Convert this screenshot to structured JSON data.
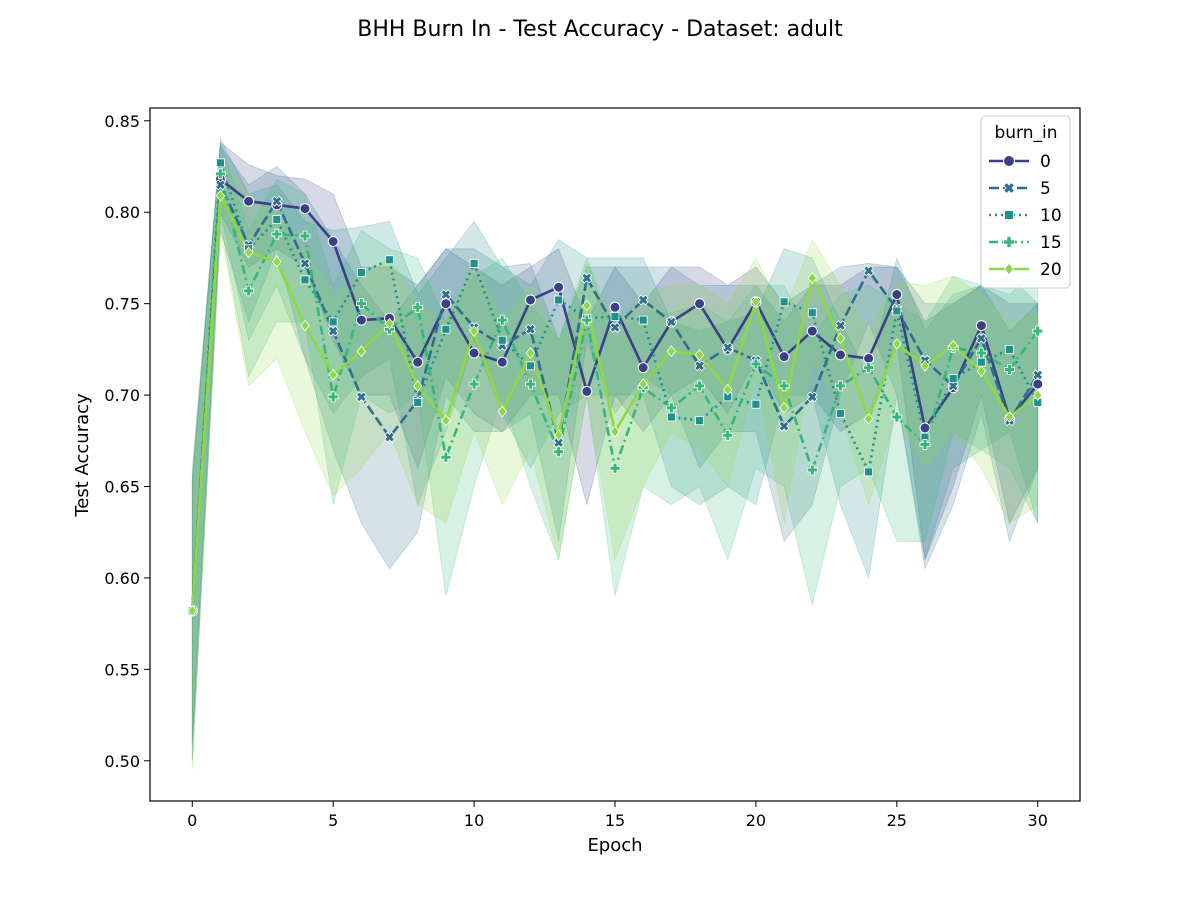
{
  "chart_data": {
    "type": "line",
    "title": "BHH Burn In - Test Accuracy - Dataset: adult",
    "xlabel": "Epoch",
    "ylabel": "Test Accuracy",
    "xlim": [
      -1.5,
      31.5
    ],
    "ylim": [
      0.478,
      0.857
    ],
    "xticks": [
      0,
      5,
      10,
      15,
      20,
      25,
      30
    ],
    "xtick_labels": [
      "0",
      "5",
      "10",
      "15",
      "20",
      "25",
      "30"
    ],
    "yticks": [
      0.5,
      0.55,
      0.6,
      0.65,
      0.7,
      0.75,
      0.8,
      0.85
    ],
    "ytick_labels": [
      "0.50",
      "0.55",
      "0.60",
      "0.65",
      "0.70",
      "0.75",
      "0.80",
      "0.85"
    ],
    "grid": false,
    "legend": {
      "title": "burn_in",
      "placement": "upper right"
    },
    "x": [
      0,
      1,
      2,
      3,
      4,
      5,
      6,
      7,
      8,
      9,
      10,
      11,
      12,
      13,
      14,
      15,
      16,
      17,
      18,
      19,
      20,
      21,
      22,
      23,
      24,
      25,
      26,
      27,
      28,
      29,
      30
    ],
    "series": [
      {
        "name": "0",
        "color": "#3b3f86",
        "marker": "circle",
        "dash": "solid",
        "values": [
          0.582,
          0.818,
          0.806,
          0.804,
          0.802,
          0.784,
          0.741,
          0.742,
          0.718,
          0.75,
          0.723,
          0.718,
          0.752,
          0.759,
          0.702,
          0.748,
          0.715,
          0.74,
          0.75,
          0.725,
          0.751,
          0.721,
          0.735,
          0.722,
          0.72,
          0.755,
          0.682,
          0.704,
          0.738,
          0.687,
          0.706
        ],
        "lower": [
          0.51,
          0.8,
          0.77,
          0.78,
          0.77,
          0.73,
          0.7,
          0.7,
          0.66,
          0.71,
          0.69,
          0.68,
          0.7,
          0.7,
          0.64,
          0.7,
          0.68,
          0.7,
          0.71,
          0.69,
          0.72,
          0.69,
          0.7,
          0.68,
          0.69,
          0.73,
          0.61,
          0.65,
          0.7,
          0.63,
          0.66
        ],
        "upper": [
          0.65,
          0.838,
          0.826,
          0.82,
          0.818,
          0.81,
          0.77,
          0.77,
          0.76,
          0.78,
          0.77,
          0.76,
          0.77,
          0.78,
          0.74,
          0.77,
          0.75,
          0.77,
          0.77,
          0.76,
          0.77,
          0.75,
          0.76,
          0.76,
          0.77,
          0.77,
          0.74,
          0.75,
          0.76,
          0.75,
          0.75
        ]
      },
      {
        "name": "5",
        "color": "#2e6e8e",
        "marker": "x",
        "dash": "10,4",
        "values": [
          0.582,
          0.815,
          0.782,
          0.806,
          0.772,
          0.735,
          0.699,
          0.677,
          0.697,
          0.755,
          0.737,
          0.727,
          0.736,
          0.674,
          0.764,
          0.737,
          0.752,
          0.74,
          0.716,
          0.726,
          0.719,
          0.683,
          0.699,
          0.738,
          0.768,
          0.747,
          0.719,
          0.705,
          0.731,
          0.686,
          0.711
        ],
        "lower": [
          0.5,
          0.79,
          0.74,
          0.78,
          0.72,
          0.67,
          0.63,
          0.605,
          0.625,
          0.7,
          0.68,
          0.68,
          0.69,
          0.62,
          0.73,
          0.69,
          0.71,
          0.7,
          0.66,
          0.68,
          0.68,
          0.62,
          0.64,
          0.7,
          0.74,
          0.7,
          0.605,
          0.64,
          0.69,
          0.62,
          0.66
        ],
        "upper": [
          0.655,
          0.836,
          0.815,
          0.825,
          0.81,
          0.785,
          0.76,
          0.74,
          0.76,
          0.78,
          0.78,
          0.77,
          0.772,
          0.73,
          0.77,
          0.77,
          0.77,
          0.77,
          0.76,
          0.76,
          0.76,
          0.74,
          0.76,
          0.77,
          0.772,
          0.77,
          0.75,
          0.75,
          0.76,
          0.735,
          0.75
        ]
      },
      {
        "name": "10",
        "color": "#21908d",
        "marker": "square",
        "dash": "2,4",
        "values": [
          0.582,
          0.827,
          0.78,
          0.796,
          0.763,
          0.74,
          0.767,
          0.774,
          0.696,
          0.736,
          0.772,
          0.73,
          0.716,
          0.752,
          0.742,
          0.743,
          0.741,
          0.688,
          0.686,
          0.699,
          0.695,
          0.751,
          0.745,
          0.69,
          0.658,
          0.746,
          0.677,
          0.709,
          0.718,
          0.725,
          0.696
        ],
        "lower": [
          0.51,
          0.8,
          0.73,
          0.76,
          0.72,
          0.69,
          0.71,
          0.72,
          0.64,
          0.68,
          0.73,
          0.69,
          0.66,
          0.69,
          0.7,
          0.7,
          0.7,
          0.65,
          0.64,
          0.65,
          0.64,
          0.7,
          0.7,
          0.64,
          0.6,
          0.7,
          0.61,
          0.66,
          0.67,
          0.68,
          0.63
        ],
        "upper": [
          0.655,
          0.84,
          0.81,
          0.815,
          0.795,
          0.79,
          0.792,
          0.795,
          0.755,
          0.775,
          0.795,
          0.77,
          0.76,
          0.785,
          0.775,
          0.775,
          0.775,
          0.74,
          0.735,
          0.74,
          0.745,
          0.78,
          0.775,
          0.74,
          0.71,
          0.775,
          0.735,
          0.755,
          0.76,
          0.765,
          0.75
        ]
      },
      {
        "name": "15",
        "color": "#35b779",
        "marker": "plus",
        "dash": "9,4,2,4",
        "values": [
          0.582,
          0.821,
          0.757,
          0.788,
          0.787,
          0.699,
          0.75,
          0.736,
          0.748,
          0.666,
          0.706,
          0.741,
          0.706,
          0.669,
          0.741,
          0.66,
          0.704,
          0.693,
          0.705,
          0.678,
          0.717,
          0.705,
          0.659,
          0.705,
          0.715,
          0.688,
          0.673,
          0.726,
          0.723,
          0.714,
          0.735
        ],
        "lower": [
          0.5,
          0.795,
          0.71,
          0.74,
          0.74,
          0.64,
          0.7,
          0.69,
          0.7,
          0.59,
          0.65,
          0.7,
          0.65,
          0.61,
          0.7,
          0.59,
          0.65,
          0.64,
          0.65,
          0.61,
          0.66,
          0.65,
          0.585,
          0.65,
          0.66,
          0.62,
          0.62,
          0.68,
          0.67,
          0.66,
          0.63
        ],
        "upper": [
          0.66,
          0.838,
          0.79,
          0.818,
          0.81,
          0.76,
          0.79,
          0.78,
          0.775,
          0.74,
          0.765,
          0.775,
          0.75,
          0.73,
          0.775,
          0.73,
          0.745,
          0.745,
          0.75,
          0.74,
          0.76,
          0.76,
          0.73,
          0.755,
          0.76,
          0.75,
          0.74,
          0.765,
          0.76,
          0.755,
          0.77
        ]
      },
      {
        "name": "20",
        "color": "#8fd744",
        "marker": "diamond",
        "dash": "solid",
        "values": [
          0.582,
          0.809,
          0.778,
          0.773,
          0.738,
          0.711,
          0.724,
          0.739,
          0.705,
          0.686,
          0.735,
          0.691,
          0.723,
          0.678,
          0.749,
          0.68,
          0.706,
          0.724,
          0.722,
          0.703,
          0.751,
          0.693,
          0.764,
          0.731,
          0.687,
          0.728,
          0.716,
          0.727,
          0.713,
          0.688,
          0.7
        ],
        "lower": [
          0.495,
          0.79,
          0.705,
          0.72,
          0.68,
          0.645,
          0.66,
          0.68,
          0.64,
          0.63,
          0.68,
          0.64,
          0.67,
          0.61,
          0.7,
          0.61,
          0.65,
          0.68,
          0.67,
          0.65,
          0.71,
          0.63,
          0.72,
          0.69,
          0.64,
          0.69,
          0.66,
          0.68,
          0.66,
          0.63,
          0.64
        ],
        "upper": [
          0.65,
          0.83,
          0.81,
          0.8,
          0.78,
          0.755,
          0.765,
          0.775,
          0.75,
          0.74,
          0.775,
          0.74,
          0.76,
          0.73,
          0.772,
          0.74,
          0.755,
          0.76,
          0.76,
          0.75,
          0.775,
          0.745,
          0.785,
          0.76,
          0.735,
          0.762,
          0.76,
          0.765,
          0.755,
          0.74,
          0.745
        ]
      }
    ]
  }
}
